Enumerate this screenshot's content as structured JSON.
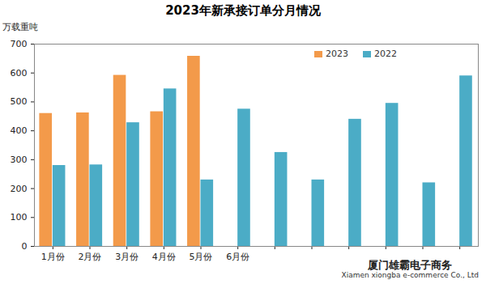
{
  "chart_data": {
    "type": "bar",
    "title": "2023年新承接订单分月情况",
    "y_label": "万载重吨",
    "categories": [
      "1月份",
      "2月份",
      "3月份",
      "4月份",
      "5月份",
      "6月份",
      null,
      null,
      null,
      null,
      null,
      null
    ],
    "series": [
      {
        "name": "2023",
        "color": "#f39a4a",
        "values": [
          460,
          462,
          592,
          466,
          658,
          null,
          null,
          null,
          null,
          null,
          null,
          null
        ]
      },
      {
        "name": "2022",
        "color": "#4bacc6",
        "values": [
          280,
          282,
          428,
          545,
          230,
          475,
          325,
          230,
          440,
          495,
          220,
          590
        ]
      }
    ],
    "ylim": [
      0,
      700
    ],
    "yticks": [
      0,
      100,
      200,
      300,
      400,
      500,
      600,
      700
    ],
    "grid": false,
    "legend": "top-right",
    "annotations": [
      "厦门雄霸电子商务",
      "Xiamen xiongba e-commerce Co., Ltd"
    ]
  }
}
